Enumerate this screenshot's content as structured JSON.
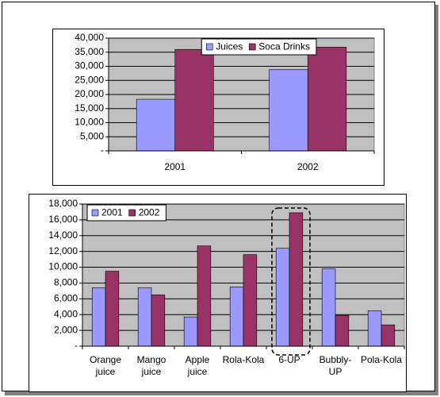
{
  "chart_data": [
    {
      "type": "bar",
      "categories": [
        "2001",
        "2002"
      ],
      "series": [
        {
          "name": "Juices",
          "color": "#9999ff",
          "values": [
            18300,
            28800
          ]
        },
        {
          "name": "Soca Drinks",
          "color": "#993366",
          "values": [
            36000,
            36800
          ]
        }
      ],
      "ylim": [
        0,
        40000
      ],
      "yticks": [
        {
          "value": 0,
          "label": "-"
        },
        {
          "value": 5000,
          "label": "5,000"
        },
        {
          "value": 10000,
          "label": "10,000"
        },
        {
          "value": 15000,
          "label": "15,000"
        },
        {
          "value": 20000,
          "label": "20,000"
        },
        {
          "value": 25000,
          "label": "25,000"
        },
        {
          "value": 30000,
          "label": "30,000"
        },
        {
          "value": 35000,
          "label": "35,000"
        },
        {
          "value": 40000,
          "label": "40,000"
        }
      ],
      "grid": true,
      "legend": "top"
    },
    {
      "type": "bar",
      "categories": [
        "Orange juice",
        "Mango juice",
        "Apple juice",
        "Rola-Kola",
        "6-UP",
        "Bubbly-UP",
        "Pola-Kola"
      ],
      "series": [
        {
          "name": "2001",
          "color": "#9999ff",
          "values": [
            7400,
            7400,
            3700,
            7500,
            12400,
            9800,
            4500
          ]
        },
        {
          "name": "2002",
          "color": "#993366",
          "values": [
            9500,
            6500,
            12700,
            11600,
            16900,
            3900,
            2700
          ]
        }
      ],
      "ylim": [
        0,
        18000
      ],
      "yticks": [
        {
          "value": 0,
          "label": "-"
        },
        {
          "value": 2000,
          "label": "2,000"
        },
        {
          "value": 4000,
          "label": "4,000"
        },
        {
          "value": 6000,
          "label": "6,000"
        },
        {
          "value": 8000,
          "label": "8,000"
        },
        {
          "value": 10000,
          "label": "10,000"
        },
        {
          "value": 12000,
          "label": "12,000"
        },
        {
          "value": 14000,
          "label": "14,000"
        },
        {
          "value": 16000,
          "label": "16,000"
        },
        {
          "value": 18000,
          "label": "18,000"
        }
      ],
      "grid": true,
      "legend": "top-left"
    }
  ]
}
